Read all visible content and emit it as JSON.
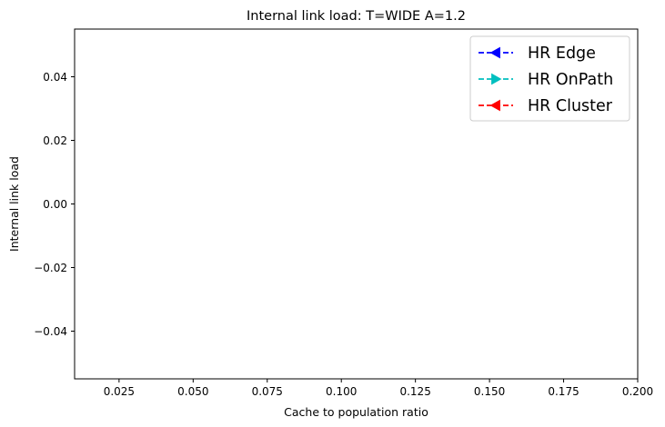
{
  "chart_data": {
    "type": "line",
    "title": "Internal link load: T=WIDE A=1.2",
    "xlabel": "Cache to population ratio",
    "ylabel": "Internal link load",
    "xlim": [
      0.01,
      0.2
    ],
    "ylim": [
      -0.055,
      0.055
    ],
    "xticks": [
      0.025,
      0.05,
      0.075,
      0.1,
      0.125,
      0.15,
      0.175,
      0.2
    ],
    "xtick_labels": [
      "0.025",
      "0.050",
      "0.075",
      "0.100",
      "0.125",
      "0.150",
      "0.175",
      "0.200"
    ],
    "yticks": [
      0.04,
      0.02,
      0.0,
      -0.02,
      -0.04
    ],
    "ytick_labels": [
      "0.04",
      "0.02",
      "0.00",
      "−0.02",
      "−0.04"
    ],
    "grid": false,
    "legend_position": "top-right",
    "series": [
      {
        "name": "HR Edge",
        "color": "#0000ff",
        "marker": "triangle-left",
        "linestyle": "dashed",
        "x": [],
        "y": []
      },
      {
        "name": "HR OnPath",
        "color": "#00bfbf",
        "marker": "triangle-right",
        "linestyle": "dashed",
        "x": [],
        "y": []
      },
      {
        "name": "HR Cluster",
        "color": "#ff0000",
        "marker": "triangle-left",
        "linestyle": "dashed",
        "x": [],
        "y": []
      }
    ]
  }
}
